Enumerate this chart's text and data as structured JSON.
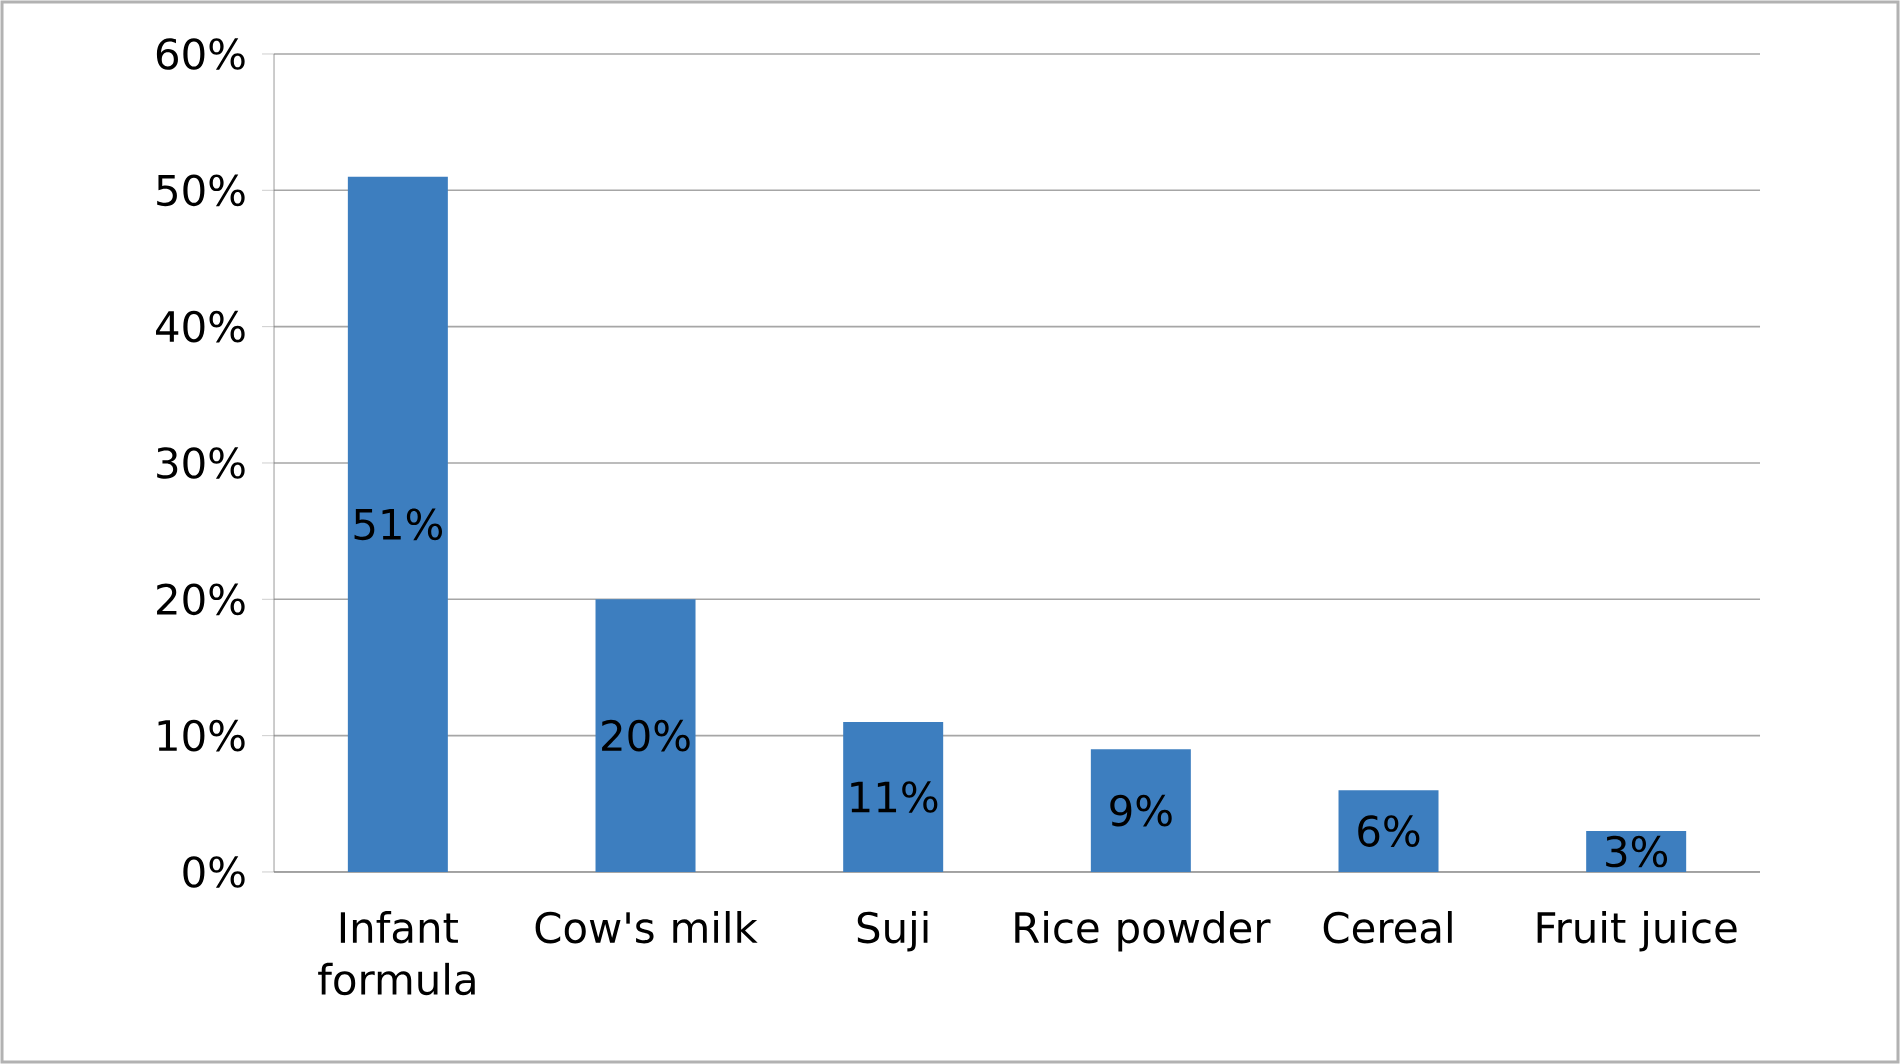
{
  "chart_data": {
    "type": "bar",
    "categories": [
      "Infant formula",
      "Cow's milk",
      "Suji",
      "Rice powder",
      "Cereal",
      "Fruit juice"
    ],
    "values": [
      51,
      20,
      11,
      9,
      6,
      3
    ],
    "value_labels": [
      "51%",
      "20%",
      "11%",
      "9%",
      "6%",
      "3%"
    ],
    "color": "#3d7ebf",
    "ylim": [
      0,
      60
    ],
    "yticks": [
      {
        "value": 0,
        "label": "0%"
      },
      {
        "value": 10,
        "label": "10%"
      },
      {
        "value": 20,
        "label": "20%"
      },
      {
        "value": 30,
        "label": "30%"
      },
      {
        "value": 40,
        "label": "40%"
      },
      {
        "value": 50,
        "label": "50%"
      },
      {
        "value": 60,
        "label": "60%"
      }
    ],
    "grid": "y"
  }
}
